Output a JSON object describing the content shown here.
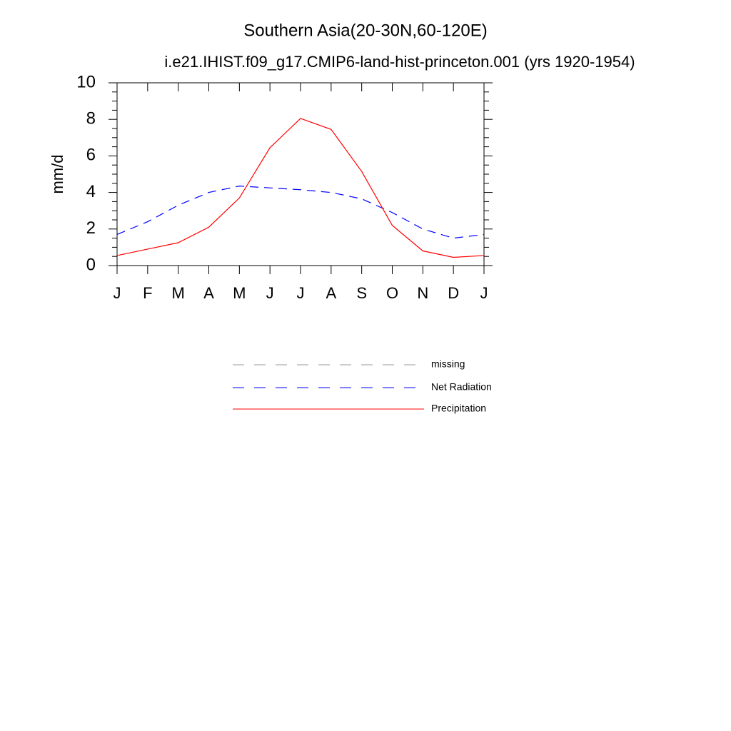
{
  "chart_data": {
    "type": "line",
    "title": "Southern Asia(20-30N,60-120E)",
    "subtitle": "i.e21.IHIST.f09_g17.CMIP6-land-hist-princeton.001 (yrs 1920-1954)",
    "ylabel": "mm/d",
    "categories": [
      "J",
      "F",
      "M",
      "A",
      "M",
      "J",
      "J",
      "A",
      "S",
      "O",
      "N",
      "D",
      "J"
    ],
    "ylim": [
      0,
      10
    ],
    "yticks": [
      0,
      2,
      4,
      6,
      8,
      10
    ],
    "series": [
      {
        "name": "missing",
        "color": "#999999",
        "dash": true,
        "values": [
          null,
          null,
          null,
          null,
          null,
          null,
          null,
          null,
          null,
          null,
          null,
          null,
          null
        ]
      },
      {
        "name": "Net Radiation",
        "color": "#0000ff",
        "dash": true,
        "values": [
          1.7,
          2.4,
          3.3,
          4.0,
          4.35,
          4.25,
          4.15,
          4.0,
          3.65,
          2.9,
          2.0,
          1.5,
          1.7
        ]
      },
      {
        "name": "Precipitation",
        "color": "#ff0000",
        "dash": false,
        "values": [
          0.55,
          0.9,
          1.25,
          2.1,
          3.7,
          6.45,
          8.05,
          7.45,
          5.15,
          2.2,
          0.8,
          0.45,
          0.55
        ]
      }
    ]
  }
}
